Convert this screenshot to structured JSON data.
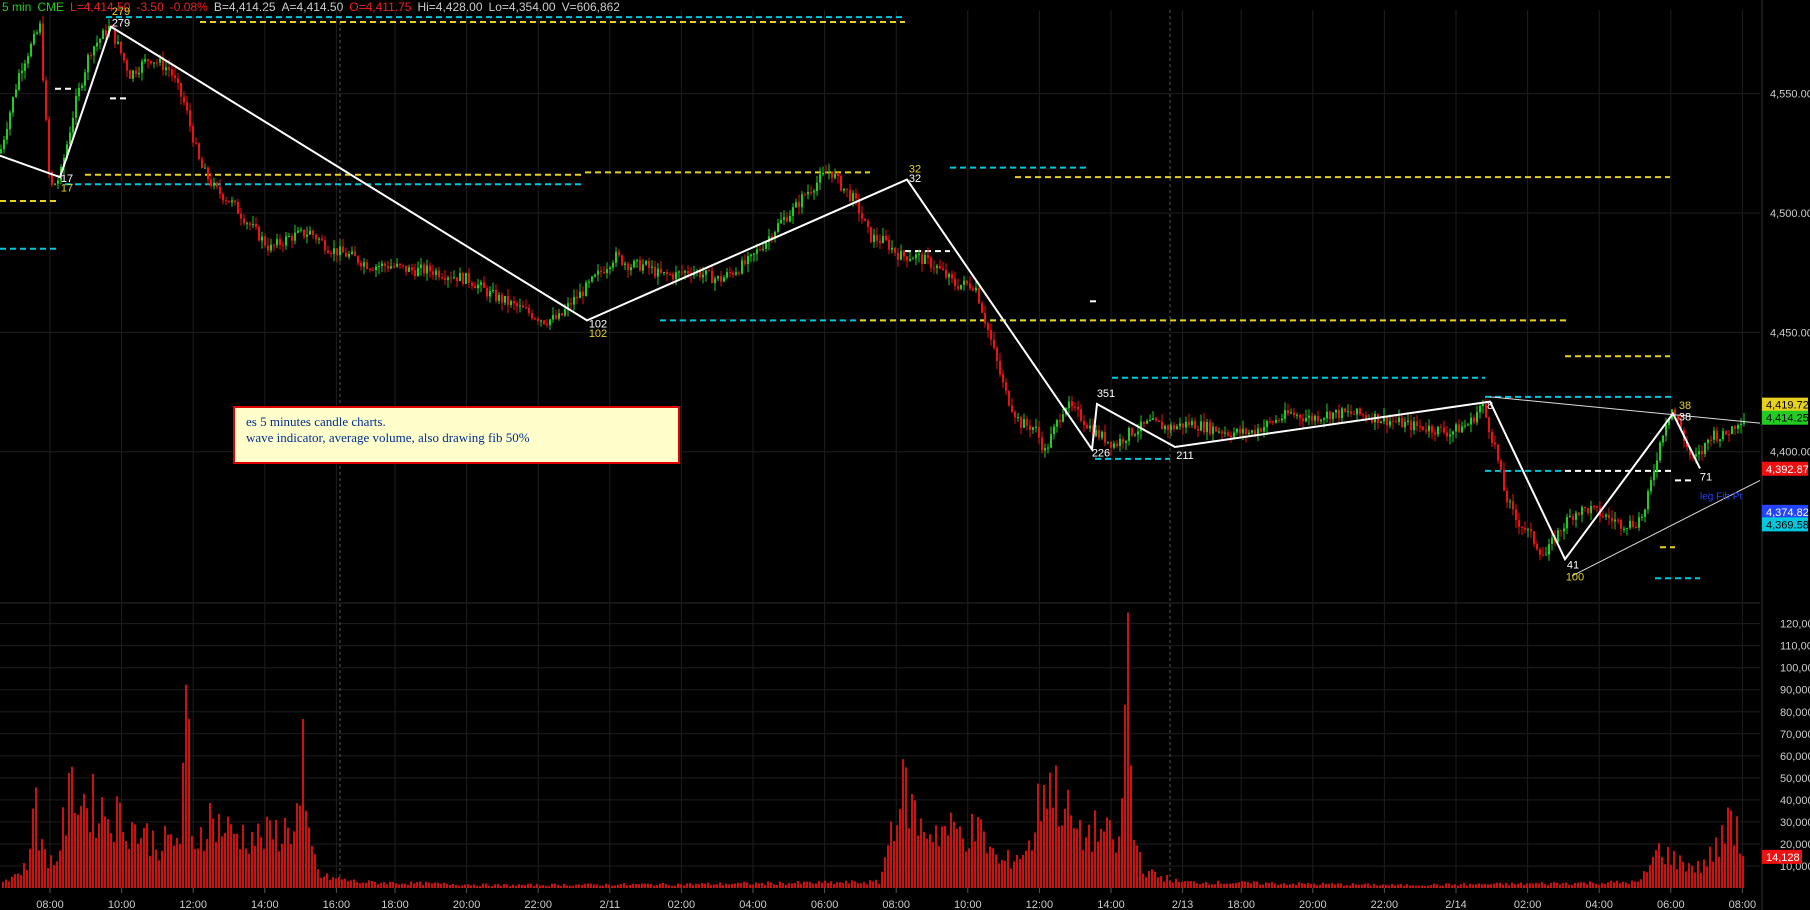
{
  "header": {
    "interval": "5 min",
    "exchange": "CME",
    "last": "L=4,414.50",
    "change": "-3.50",
    "change_pct": "-0.08%",
    "bid": "B=4,414.25",
    "ask": "A=4,414.50",
    "open": "O=4,411.75",
    "high": "Hi=4,428.00",
    "low": "Lo=4,354.00",
    "volume": "V=606,862"
  },
  "note": {
    "line1": "es 5 minutes candle charts.",
    "line2": "wave indicator, average volume, also drawing fib 50%"
  },
  "colors": {
    "up": "#22cc22",
    "down": "#ee1111",
    "wave": "#ffffff",
    "fib_yellow": "#e6d21e",
    "fib_cyan": "#00c8dc",
    "volume": "#cc1111",
    "grid": "#1e1e1e"
  },
  "chart_data": [
    {
      "type": "line",
      "name": "price",
      "ylim": [
        4340,
        4585
      ],
      "yticks": [
        "4,400.00",
        "4,450.00",
        "4,500.00",
        "4,550.00"
      ],
      "ytick_values": [
        4400,
        4450,
        4500,
        4550
      ],
      "xtick_labels": [
        "08:00",
        "10:00",
        "12:00",
        "14:00",
        "16:00",
        "18:00",
        "20:00",
        "22:00",
        "2/11",
        "02:00",
        "04:00",
        "06:00",
        "08:00",
        "10:00",
        "12:00",
        "14:00",
        "2/13",
        "18:00",
        "20:00",
        "22:00",
        "2/14",
        "02:00",
        "04:00",
        "06:00",
        "08:00"
      ],
      "price_path": [
        [
          0,
          4525
        ],
        [
          20,
          4560
        ],
        [
          40,
          4578
        ],
        [
          50,
          4510
        ],
        [
          60,
          4515
        ],
        [
          75,
          4545
        ],
        [
          90,
          4568
        ],
        [
          110,
          4578
        ],
        [
          130,
          4558
        ],
        [
          150,
          4565
        ],
        [
          170,
          4560
        ],
        [
          185,
          4545
        ],
        [
          200,
          4520
        ],
        [
          215,
          4510
        ],
        [
          230,
          4505
        ],
        [
          250,
          4495
        ],
        [
          270,
          4485
        ],
        [
          290,
          4490
        ],
        [
          310,
          4492
        ],
        [
          330,
          4485
        ],
        [
          350,
          4482
        ],
        [
          370,
          4478
        ],
        [
          390,
          4478
        ],
        [
          410,
          4476
        ],
        [
          430,
          4476
        ],
        [
          450,
          4474
        ],
        [
          470,
          4472
        ],
        [
          490,
          4466
        ],
        [
          510,
          4462
        ],
        [
          530,
          4458
        ],
        [
          545,
          4455
        ],
        [
          560,
          4456
        ],
        [
          570,
          4462
        ],
        [
          585,
          4468
        ],
        [
          600,
          4475
        ],
        [
          615,
          4482
        ],
        [
          630,
          4478
        ],
        [
          645,
          4478
        ],
        [
          660,
          4474
        ],
        [
          675,
          4474
        ],
        [
          690,
          4476
        ],
        [
          705,
          4474
        ],
        [
          720,
          4472
        ],
        [
          735,
          4476
        ],
        [
          750,
          4480
        ],
        [
          765,
          4488
        ],
        [
          780,
          4496
        ],
        [
          795,
          4502
        ],
        [
          805,
          4508
        ],
        [
          820,
          4514
        ],
        [
          830,
          4518
        ],
        [
          840,
          4512
        ],
        [
          855,
          4505
        ],
        [
          870,
          4490
        ],
        [
          885,
          4488
        ],
        [
          900,
          4482
        ],
        [
          915,
          4482
        ],
        [
          935,
          4478
        ],
        [
          955,
          4470
        ],
        [
          975,
          4470
        ],
        [
          990,
          4448
        ],
        [
          1005,
          4425
        ],
        [
          1020,
          4412
        ],
        [
          1035,
          4410
        ],
        [
          1045,
          4400
        ],
        [
          1065,
          4420
        ],
        [
          1080,
          4415
        ],
        [
          1095,
          4408
        ],
        [
          1115,
          4403
        ],
        [
          1130,
          4408
        ],
        [
          1150,
          4412
        ],
        [
          1170,
          4410
        ],
        [
          1190,
          4412
        ],
        [
          1210,
          4410
        ],
        [
          1230,
          4408
        ],
        [
          1250,
          4408
        ],
        [
          1270,
          4412
        ],
        [
          1290,
          4416
        ],
        [
          1310,
          4414
        ],
        [
          1330,
          4416
        ],
        [
          1350,
          4416
        ],
        [
          1370,
          4415
        ],
        [
          1390,
          4413
        ],
        [
          1410,
          4411
        ],
        [
          1430,
          4410
        ],
        [
          1450,
          4408
        ],
        [
          1470,
          4412
        ],
        [
          1482,
          4420
        ],
        [
          1495,
          4402
        ],
        [
          1505,
          4382
        ],
        [
          1515,
          4372
        ],
        [
          1525,
          4368
        ],
        [
          1535,
          4362
        ],
        [
          1545,
          4356
        ],
        [
          1555,
          4364
        ],
        [
          1565,
          4370
        ],
        [
          1575,
          4375
        ],
        [
          1590,
          4376
        ],
        [
          1605,
          4373
        ],
        [
          1620,
          4370
        ],
        [
          1635,
          4370
        ],
        [
          1645,
          4375
        ],
        [
          1655,
          4395
        ],
        [
          1665,
          4412
        ],
        [
          1672,
          4418
        ],
        [
          1682,
          4408
        ],
        [
          1692,
          4396
        ],
        [
          1702,
          4400
        ],
        [
          1712,
          4408
        ],
        [
          1722,
          4406
        ],
        [
          1732,
          4410
        ],
        [
          1740,
          4414
        ]
      ],
      "wave": [
        [
          0,
          4524
        ],
        [
          60,
          4515
        ],
        [
          111,
          4578
        ],
        [
          587,
          4455
        ],
        [
          907,
          4514
        ],
        [
          1092,
          4401
        ],
        [
          1097,
          4420
        ],
        [
          1175,
          4402
        ],
        [
          1490,
          4421
        ],
        [
          1565,
          4355
        ],
        [
          1673,
          4416
        ],
        [
          1700,
          4393
        ]
      ],
      "wave_labels": [
        {
          "x": 121,
          "y": 4578,
          "text": "279",
          "color": "#ffffff"
        },
        {
          "x": 121,
          "y": 4583,
          "text": "279",
          "color": "#e6d21e"
        },
        {
          "x": 67,
          "y": 4513,
          "text": "17",
          "color": "#ffffff"
        },
        {
          "x": 67,
          "y": 4509,
          "text": "17",
          "color": "#e6d21e"
        },
        {
          "x": 598,
          "y": 4452,
          "text": "102",
          "color": "#ffffff"
        },
        {
          "x": 598,
          "y": 4448,
          "text": "102",
          "color": "#e6d21e"
        },
        {
          "x": 915,
          "y": 4517,
          "text": "32",
          "color": "#e6d21e"
        },
        {
          "x": 915,
          "y": 4513,
          "text": "32",
          "color": "#ffffff"
        },
        {
          "x": 1106,
          "y": 4423,
          "text": "351",
          "color": "#ffffff"
        },
        {
          "x": 1101,
          "y": 4398,
          "text": "226",
          "color": "#ffffff"
        },
        {
          "x": 1185,
          "y": 4397,
          "text": "211",
          "color": "#ffffff"
        },
        {
          "x": 1490,
          "y": 4418,
          "text": "8",
          "color": "#ffffff"
        },
        {
          "x": 1573,
          "y": 4351,
          "text": "41",
          "color": "#ffffff"
        },
        {
          "x": 1575,
          "y": 4346,
          "text": "100",
          "color": "#e6d21e"
        },
        {
          "x": 1685,
          "y": 4418,
          "text": "38",
          "color": "#e6d21e"
        },
        {
          "x": 1685,
          "y": 4413,
          "text": "38",
          "color": "#ffffff"
        },
        {
          "x": 1706,
          "y": 4388,
          "text": "71",
          "color": "#ffffff"
        }
      ],
      "fib_levels": [
        {
          "x1": 106,
          "x2": 905,
          "y": 4582,
          "color": "#00c8dc"
        },
        {
          "x1": 200,
          "x2": 905,
          "y": 4580,
          "color": "#e6d21e"
        },
        {
          "x1": 55,
          "x2": 75,
          "y": 4552,
          "color": "#ffffff"
        },
        {
          "x1": 110,
          "x2": 130,
          "y": 4548,
          "color": "#ffffff"
        },
        {
          "x1": 85,
          "x2": 585,
          "y": 4516,
          "color": "#e6d21e"
        },
        {
          "x1": 585,
          "x2": 870,
          "y": 4517,
          "color": "#e6d21e"
        },
        {
          "x1": 65,
          "x2": 585,
          "y": 4512,
          "color": "#00c8dc"
        },
        {
          "x1": 0,
          "x2": 60,
          "y": 4505,
          "color": "#e6d21e"
        },
        {
          "x1": 0,
          "x2": 60,
          "y": 4485,
          "color": "#00c8dc"
        },
        {
          "x1": 950,
          "x2": 1090,
          "y": 4519,
          "color": "#00c8dc"
        },
        {
          "x1": 1015,
          "x2": 1670,
          "y": 4515,
          "color": "#e6d21e"
        },
        {
          "x1": 905,
          "x2": 950,
          "y": 4484,
          "color": "#ffffff"
        },
        {
          "x1": 660,
          "x2": 1090,
          "y": 4455,
          "color": "#00c8dc"
        },
        {
          "x1": 860,
          "x2": 1570,
          "y": 4455,
          "color": "#e6d21e"
        },
        {
          "x1": 1090,
          "x2": 1100,
          "y": 4463,
          "color": "#ffffff"
        },
        {
          "x1": 1112,
          "x2": 1485,
          "y": 4431,
          "color": "#00c8dc"
        },
        {
          "x1": 1095,
          "x2": 1170,
          "y": 4397,
          "color": "#00c8dc"
        },
        {
          "x1": 1485,
          "x2": 1675,
          "y": 4423,
          "color": "#00c8dc"
        },
        {
          "x1": 1565,
          "x2": 1670,
          "y": 4440,
          "color": "#e6d21e"
        },
        {
          "x1": 1485,
          "x2": 1565,
          "y": 4392,
          "color": "#00c8dc"
        },
        {
          "x1": 1565,
          "x2": 1675,
          "y": 4392,
          "color": "#ffffff"
        },
        {
          "x1": 1675,
          "x2": 1695,
          "y": 4388,
          "color": "#ffffff"
        },
        {
          "x1": 1660,
          "x2": 1675,
          "y": 4360,
          "color": "#e6d21e"
        },
        {
          "x1": 1655,
          "x2": 1700,
          "y": 4347,
          "color": "#00c8dc"
        }
      ],
      "trend_lines": [
        {
          "x1": 1490,
          "y1": 4423,
          "x2": 1760,
          "y2": 4412
        },
        {
          "x1": 1572,
          "y1": 4348,
          "x2": 1760,
          "y2": 4388
        }
      ],
      "text_labels": [
        {
          "x": 1700,
          "y": 4380,
          "text": "leg Fib Pt",
          "color": "#2244ff"
        }
      ],
      "price_markers": [
        {
          "value": 4419.72,
          "text": "4,419.72",
          "bg": "#e6d21e",
          "fg": "#000000"
        },
        {
          "value": 4414.25,
          "text": "4,414.25",
          "bg": "#22cc22",
          "fg": "#000000"
        },
        {
          "value": 4392.87,
          "text": "4,392.87",
          "bg": "#ee1111",
          "fg": "#ffffff"
        },
        {
          "value": 4374.82,
          "text": "4,374.82",
          "bg": "#2244ff",
          "fg": "#ffffff"
        },
        {
          "value": 4369.58,
          "text": "4,369.58",
          "bg": "#00c8dc",
          "fg": "#000000"
        }
      ]
    },
    {
      "type": "bar",
      "name": "volume",
      "ylim": [
        0,
        128000
      ],
      "yticks": [
        "10,000",
        "20,000",
        "30,000",
        "40,000",
        "50,000",
        "60,000",
        "70,000",
        "80,000",
        "90,000",
        "100,000",
        "110,000",
        "120,000"
      ],
      "ytick_values": [
        10000,
        20000,
        30000,
        40000,
        50000,
        60000,
        70000,
        80000,
        90000,
        100000,
        110000,
        120000
      ],
      "last_volume": {
        "value": 14128,
        "text": "14,128"
      },
      "volume_profile": [
        [
          0,
          3000
        ],
        [
          20,
          8000
        ],
        [
          30,
          15000
        ],
        [
          35,
          65000
        ],
        [
          40,
          20000
        ],
        [
          55,
          12000
        ],
        [
          70,
          45000
        ],
        [
          75,
          53000
        ],
        [
          80,
          45000
        ],
        [
          100,
          40000
        ],
        [
          120,
          35000
        ],
        [
          140,
          28000
        ],
        [
          160,
          22000
        ],
        [
          180,
          25000
        ],
        [
          188,
          95000
        ],
        [
          192,
          22000
        ],
        [
          210,
          35000
        ],
        [
          230,
          28000
        ],
        [
          260,
          25000
        ],
        [
          290,
          30000
        ],
        [
          300,
          40000
        ],
        [
          302,
          100000
        ],
        [
          305,
          30000
        ],
        [
          320,
          6000
        ],
        [
          360,
          3000
        ],
        [
          500,
          1500
        ],
        [
          700,
          2000
        ],
        [
          880,
          3000
        ],
        [
          895,
          40000
        ],
        [
          905,
          50000
        ],
        [
          920,
          30000
        ],
        [
          980,
          28000
        ],
        [
          1000,
          12000
        ],
        [
          1030,
          20000
        ],
        [
          1045,
          57000
        ],
        [
          1060,
          45000
        ],
        [
          1080,
          25000
        ],
        [
          1100,
          30000
        ],
        [
          1120,
          20000
        ],
        [
          1128,
          125000
        ],
        [
          1132,
          30000
        ],
        [
          1145,
          8000
        ],
        [
          1180,
          3000
        ],
        [
          1400,
          1500
        ],
        [
          1500,
          2000
        ],
        [
          1640,
          3000
        ],
        [
          1660,
          20000
        ],
        [
          1675,
          14000
        ],
        [
          1700,
          10000
        ],
        [
          1725,
          25000
        ],
        [
          1728,
          45000
        ],
        [
          1735,
          30000
        ],
        [
          1745,
          14000
        ]
      ]
    }
  ]
}
